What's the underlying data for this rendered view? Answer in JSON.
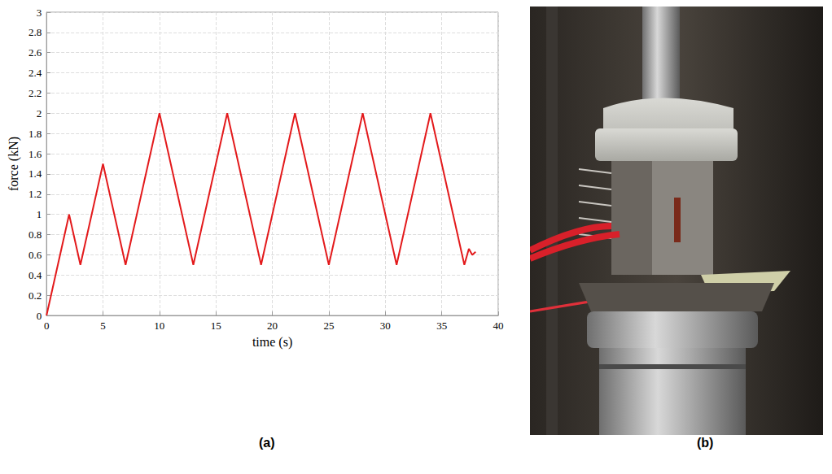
{
  "chart_data": {
    "type": "line",
    "x_label": "time (s)",
    "y_label": "force (kN)",
    "x": [
      0,
      2,
      3,
      5,
      7,
      10,
      13,
      16,
      19,
      22,
      25,
      28,
      31,
      34,
      37,
      37.4,
      37.7,
      38
    ],
    "values": [
      0,
      1,
      0.5,
      1.5,
      0.5,
      2,
      0.5,
      2,
      0.5,
      2,
      0.5,
      2,
      0.5,
      2,
      0.5,
      0.66,
      0.6,
      0.63
    ],
    "color": "#e31a1c",
    "line_style": "solid",
    "marker": "none",
    "xlim": [
      0,
      40
    ],
    "xticks": [
      0,
      5,
      10,
      15,
      20,
      25,
      30,
      35,
      40
    ],
    "ylim": [
      0,
      3
    ],
    "yticks": [
      0,
      0.2,
      0.4,
      0.6,
      0.8,
      1,
      1.2,
      1.4,
      1.6,
      1.8,
      2,
      2.2,
      2.4,
      2.6,
      2.8,
      3
    ],
    "grid": true
  },
  "panel_labels": [
    "(a)",
    "(b)"
  ]
}
